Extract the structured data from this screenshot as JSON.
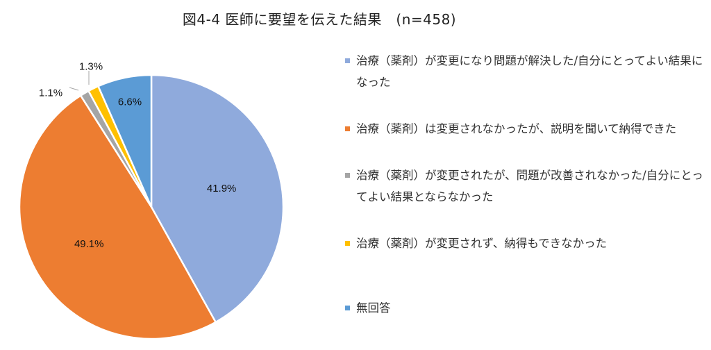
{
  "chart_data": {
    "type": "pie",
    "title": "図4-4 医師に要望を伝えた結果　(n=458)",
    "categories": [
      "治療（薬剤）が変更になり問題が解決した/自分にとってよい結果になった",
      "治療（薬剤）は変更されなかったが、説明を聞いて納得できた",
      "治療（薬剤）が変更されたが、問題が改善されなかった/自分にとってよい結果とならなかった",
      "治療（薬剤）が変更されず、納得もできなかった",
      "無回答"
    ],
    "values": [
      41.9,
      49.1,
      1.1,
      1.3,
      6.6
    ],
    "labels": [
      "41.9%",
      "49.1%",
      "1.1%",
      "1.3%",
      "6.6%"
    ],
    "colors": [
      "#8faadc",
      "#ed7d31",
      "#a5a5a5",
      "#ffc000",
      "#5b9bd5"
    ],
    "legend": "right"
  }
}
